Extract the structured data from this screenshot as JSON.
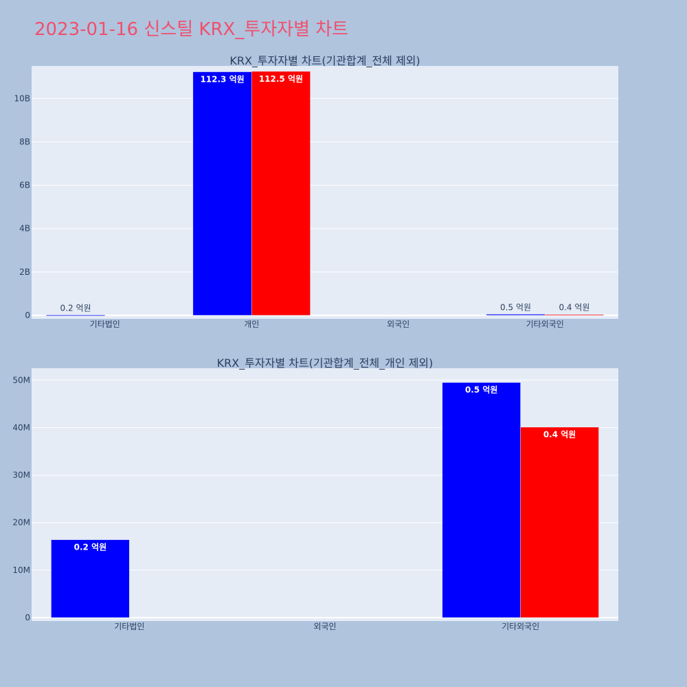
{
  "page": {
    "title": "2023-01-16 신스틸 KRX_투자자별 차트",
    "background": "#b0c4de",
    "title_color": "#f0506e",
    "plot_background": "#e5ecf6",
    "buy_color": "#0000ff",
    "sell_color": "#ff0000"
  },
  "chart_data": [
    {
      "type": "bar",
      "title": "KRX_투자자별 차트(기관합계_전체 제외)",
      "categories": [
        "기타법인",
        "개인",
        "외국인",
        "기타외국인"
      ],
      "ylim": [
        0,
        11500000000
      ],
      "yticks": [
        0,
        2000000000,
        4000000000,
        6000000000,
        8000000000,
        10000000000
      ],
      "yticklabels": [
        "0",
        "2B",
        "4B",
        "6B",
        "8B",
        "10B"
      ],
      "grid": true,
      "series": [
        {
          "color": "#0000ff",
          "values": [
            16000000,
            11230000000,
            0,
            49500000
          ],
          "labels": [
            "0.2 억원",
            "112.3 억원",
            "",
            "0.5 억원"
          ]
        },
        {
          "color": "#ff0000",
          "values": [
            0,
            11250000000,
            0,
            40000000
          ],
          "labels": [
            "",
            "112.5 억원",
            "",
            "0.4 억원"
          ]
        }
      ]
    },
    {
      "type": "bar",
      "title": "KRX_투자자별 차트(기관합계_전체_개인 제외)",
      "categories": [
        "기타법인",
        "외국인",
        "기타외국인"
      ],
      "ylim": [
        0,
        52500000
      ],
      "yticks": [
        0,
        10000000,
        20000000,
        30000000,
        40000000,
        50000000
      ],
      "yticklabels": [
        "0",
        "10M",
        "20M",
        "30M",
        "40M",
        "50M"
      ],
      "grid": true,
      "series": [
        {
          "color": "#0000ff",
          "values": [
            16400000,
            0,
            49500000
          ],
          "labels": [
            "0.2 억원",
            "",
            "0.5 억원"
          ]
        },
        {
          "color": "#ff0000",
          "values": [
            0,
            0,
            40100000
          ],
          "labels": [
            "",
            "",
            "0.4 억원"
          ]
        }
      ]
    }
  ]
}
